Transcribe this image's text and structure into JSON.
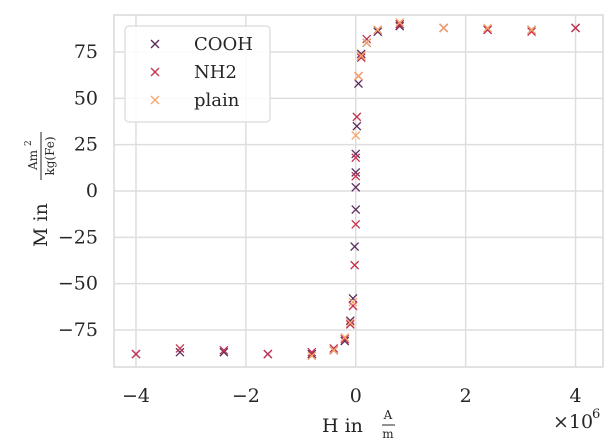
{
  "chart_data": {
    "type": "scatter",
    "title": "",
    "xlabel": {
      "prefix": "H in",
      "numerator": "A",
      "denominator": "m"
    },
    "ylabel": {
      "prefix": "M in",
      "numerator": "Am",
      "numerator_exp": "2",
      "denominator": "kg(Fe)"
    },
    "x_scale_note": {
      "base": "×10",
      "exponent": "6"
    },
    "xlim": [
      -4.4,
      4.5
    ],
    "ylim": [
      -95,
      95
    ],
    "xticks": [
      -4,
      -2,
      0,
      2,
      4
    ],
    "xtick_labels": [
      "−4",
      "−2",
      "0",
      "2",
      "4"
    ],
    "yticks": [
      -75,
      -50,
      -25,
      0,
      25,
      50,
      75
    ],
    "ytick_labels": [
      "−75",
      "−50",
      "−25",
      "0",
      "25",
      "50",
      "75"
    ],
    "grid": true,
    "marker": "x",
    "legend_position": "upper-left",
    "series": [
      {
        "name": "COOH",
        "color": "#5c2a5c",
        "x": [
          -4.0,
          -3.2,
          -2.4,
          -1.6,
          -0.8,
          -0.4,
          -0.2,
          -0.1,
          -0.05,
          -0.02,
          0.0,
          0.0,
          0.0,
          0.0,
          0.02,
          0.05,
          0.1,
          0.2,
          0.4,
          0.8,
          1.6,
          2.4,
          3.2,
          4.0
        ],
        "y": [
          -88,
          -87,
          -87,
          -88,
          -88,
          -86,
          -81,
          -70,
          -58,
          -30,
          -10,
          2,
          10,
          20,
          35,
          58,
          74,
          80,
          86,
          89,
          88,
          87,
          87,
          88
        ]
      },
      {
        "name": "NH2",
        "color": "#c6324f",
        "x": [
          -4.0,
          -3.2,
          -2.4,
          -1.6,
          -0.8,
          -0.4,
          -0.2,
          -0.1,
          -0.05,
          -0.02,
          0.0,
          0.0,
          0.0,
          0.02,
          0.05,
          0.1,
          0.2,
          0.4,
          0.8,
          1.6,
          2.4,
          3.2,
          4.0
        ],
        "y": [
          -88,
          -85,
          -86,
          -88,
          -87,
          -85,
          -80,
          -72,
          -62,
          -40,
          -18,
          8,
          18,
          40,
          62,
          72,
          82,
          87,
          90,
          88,
          87,
          86,
          88
        ]
      },
      {
        "name": "plain",
        "color": "#f5a66b",
        "x": [
          -0.8,
          -0.4,
          -0.2,
          -0.1,
          -0.05,
          0.0,
          0.05,
          0.1,
          0.2,
          0.4,
          0.8,
          1.6,
          2.4,
          3.2
        ],
        "y": [
          -89,
          -86,
          -79,
          -71,
          -60,
          30,
          62,
          73,
          80,
          87,
          91,
          88,
          88,
          87
        ]
      }
    ]
  }
}
